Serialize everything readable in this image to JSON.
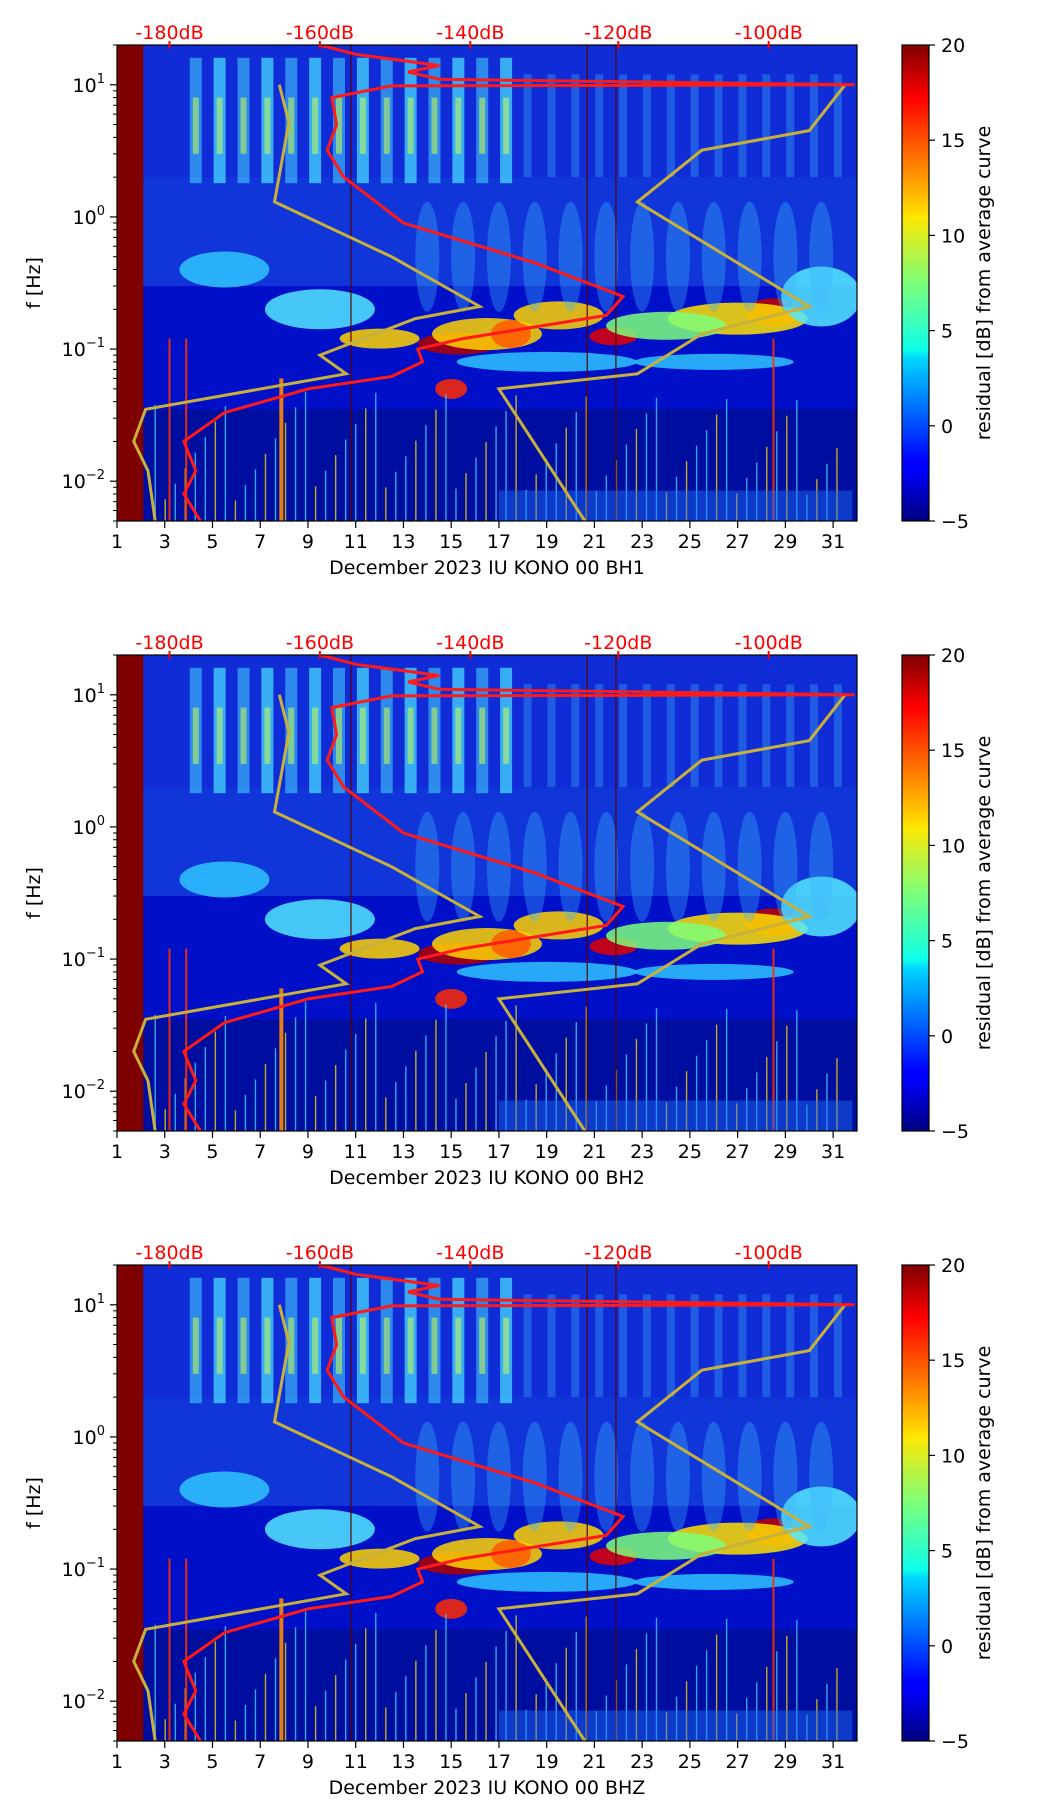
{
  "colors": {
    "curve": "#ff1a1a",
    "model": "#c8b03c",
    "db_labels": "#ff0000"
  },
  "colorbar": {
    "label": "residual [dB] from average curve",
    "ticks": [
      "20",
      "15",
      "10",
      "5",
      "0",
      "−5"
    ],
    "range": [
      -5,
      20
    ]
  },
  "chart_data": [
    {
      "type": "heatmap",
      "xlabel": "December 2023 IU KONO 00 BH1",
      "ylabel": "f [Hz]",
      "x_ticks": [
        "1",
        "3",
        "5",
        "7",
        "9",
        "11",
        "13",
        "15",
        "17",
        "19",
        "21",
        "23",
        "25",
        "27",
        "29",
        "31"
      ],
      "y_ticks": [
        {
          "base": "10",
          "exp": "1"
        },
        {
          "base": "10",
          "exp": "0"
        },
        {
          "base": "10",
          "exp": "−1"
        },
        {
          "base": "10",
          "exp": "−2"
        }
      ],
      "top_ticks": [
        "-180dB",
        "-160dB",
        "-140dB",
        "-120dB",
        "-100dB"
      ],
      "xlim": [
        1,
        32
      ],
      "ylim_hz": [
        0.005,
        20
      ],
      "scale_y": "log"
    },
    {
      "type": "heatmap",
      "xlabel": "December 2023 IU KONO 00 BH2",
      "ylabel": "f [Hz]",
      "x_ticks": [
        "1",
        "3",
        "5",
        "7",
        "9",
        "11",
        "13",
        "15",
        "17",
        "19",
        "21",
        "23",
        "25",
        "27",
        "29",
        "31"
      ],
      "y_ticks": [
        {
          "base": "10",
          "exp": "1"
        },
        {
          "base": "10",
          "exp": "0"
        },
        {
          "base": "10",
          "exp": "−1"
        },
        {
          "base": "10",
          "exp": "−2"
        }
      ],
      "top_ticks": [
        "-180dB",
        "-160dB",
        "-140dB",
        "-120dB",
        "-100dB"
      ],
      "xlim": [
        1,
        32
      ],
      "ylim_hz": [
        0.005,
        20
      ],
      "scale_y": "log"
    },
    {
      "type": "heatmap",
      "xlabel": "December 2023 IU KONO 00 BHZ",
      "ylabel": "f [Hz]",
      "x_ticks": [
        "1",
        "3",
        "5",
        "7",
        "9",
        "11",
        "13",
        "15",
        "17",
        "19",
        "21",
        "23",
        "25",
        "27",
        "29",
        "31"
      ],
      "y_ticks": [
        {
          "base": "10",
          "exp": "1"
        },
        {
          "base": "10",
          "exp": "0"
        },
        {
          "base": "10",
          "exp": "−1"
        },
        {
          "base": "10",
          "exp": "−2"
        }
      ],
      "top_ticks": [
        "-180dB",
        "-160dB",
        "-140dB",
        "-120dB",
        "-100dB"
      ],
      "xlim": [
        1,
        32
      ],
      "ylim_hz": [
        0.005,
        20
      ],
      "scale_y": "log"
    }
  ]
}
